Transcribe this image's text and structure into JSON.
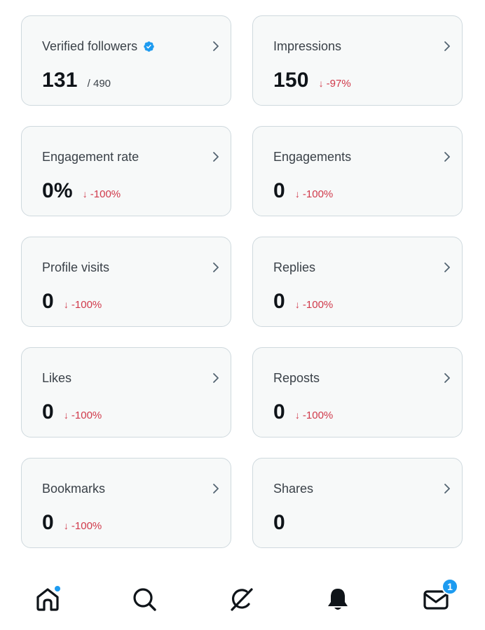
{
  "cards": [
    {
      "title": "Verified followers",
      "value": "131",
      "sub": "/ 490",
      "change": "",
      "verified": true
    },
    {
      "title": "Impressions",
      "value": "150",
      "sub": "",
      "change": "-97%"
    },
    {
      "title": "Engagement rate",
      "value": "0%",
      "sub": "",
      "change": "-100%"
    },
    {
      "title": "Engagements",
      "value": "0",
      "sub": "",
      "change": "-100%"
    },
    {
      "title": "Profile visits",
      "value": "0",
      "sub": "",
      "change": "-100%"
    },
    {
      "title": "Replies",
      "value": "0",
      "sub": "",
      "change": "-100%"
    },
    {
      "title": "Likes",
      "value": "0",
      "sub": "",
      "change": "-100%"
    },
    {
      "title": "Reposts",
      "value": "0",
      "sub": "",
      "change": "-100%"
    },
    {
      "title": "Bookmarks",
      "value": "0",
      "sub": "",
      "change": "-100%"
    },
    {
      "title": "Shares",
      "value": "0",
      "sub": "",
      "change": ""
    }
  ],
  "change_arrow": "↓",
  "icons": {
    "card_chevron": "chevron-right-icon",
    "verified": "verified-badge-icon"
  },
  "colors": {
    "negative": "#d0394a",
    "accent": "#1d9bf0",
    "card_bg": "#f7f9f9",
    "card_border": "#cfd9de"
  },
  "bottom_nav": {
    "items": [
      {
        "name": "home",
        "icon": "home-icon",
        "active_dot": true
      },
      {
        "name": "search",
        "icon": "search-icon"
      },
      {
        "name": "grok",
        "icon": "grok-icon"
      },
      {
        "name": "notifications",
        "icon": "bell-icon"
      },
      {
        "name": "messages",
        "icon": "envelope-icon",
        "badge": "1"
      }
    ]
  }
}
